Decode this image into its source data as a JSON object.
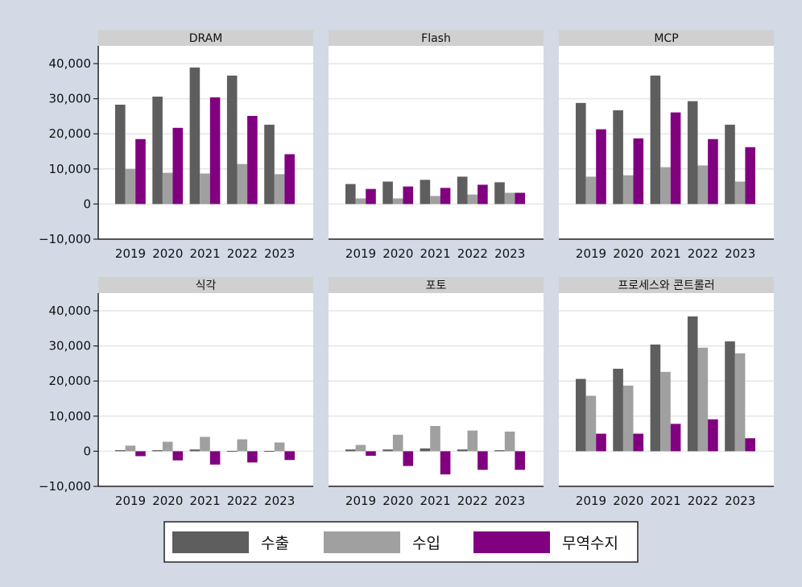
{
  "chart_data": {
    "type": "bar",
    "categories": [
      "2019",
      "2020",
      "2021",
      "2022",
      "2023"
    ],
    "ylim": [
      -10000,
      45000
    ],
    "yticks": [
      -10000,
      0,
      10000,
      20000,
      30000,
      40000
    ],
    "ytick_labels": [
      "−10,000",
      "0",
      "10,000",
      "20,000",
      "30,000",
      "40,000"
    ],
    "grid": true,
    "legend": {
      "placement": "bottom",
      "entries": [
        {
          "name": "수출",
          "color": "#5e5e5e"
        },
        {
          "name": "수입",
          "color": "#a0a0a0"
        },
        {
          "name": "무역수지",
          "color": "#800080"
        }
      ]
    },
    "panels": [
      {
        "title": "DRAM",
        "series": [
          {
            "name": "수출",
            "values": [
              28300,
              30600,
              38900,
              36600,
              22600
            ]
          },
          {
            "name": "수입",
            "values": [
              10000,
              8900,
              8700,
              11400,
              8500
            ]
          },
          {
            "name": "무역수지",
            "values": [
              18500,
              21700,
              30400,
              25100,
              14200
            ]
          }
        ]
      },
      {
        "title": "Flash",
        "series": [
          {
            "name": "수출",
            "values": [
              5700,
              6400,
              6900,
              7800,
              6200
            ]
          },
          {
            "name": "수입",
            "values": [
              1600,
              1600,
              2300,
              2700,
              3200
            ]
          },
          {
            "name": "무역수지",
            "values": [
              4300,
              5000,
              4600,
              5500,
              3200
            ]
          }
        ]
      },
      {
        "title": "MCP",
        "series": [
          {
            "name": "수출",
            "values": [
              28800,
              26700,
              36600,
              29300,
              22600
            ]
          },
          {
            "name": "수입",
            "values": [
              7800,
              8200,
              10500,
              11000,
              6400
            ]
          },
          {
            "name": "무역수지",
            "values": [
              21300,
              18700,
              26100,
              18500,
              16200
            ]
          }
        ]
      },
      {
        "title": "식각",
        "series": [
          {
            "name": "수출",
            "values": [
              300,
              300,
              500,
              100,
              100
            ]
          },
          {
            "name": "수입",
            "values": [
              1600,
              2700,
              4100,
              3400,
              2500
            ]
          },
          {
            "name": "무역수지",
            "values": [
              -1400,
              -2600,
              -3800,
              -3200,
              -2500
            ]
          }
        ]
      },
      {
        "title": "포토",
        "series": [
          {
            "name": "수출",
            "values": [
              500,
              500,
              800,
              500,
              300
            ]
          },
          {
            "name": "수입",
            "values": [
              1800,
              4700,
              7200,
              5900,
              5600
            ]
          },
          {
            "name": "무역수지",
            "values": [
              -1300,
              -4200,
              -6600,
              -5300,
              -5300
            ]
          }
        ]
      },
      {
        "title": "프로세스와 콘트롤러",
        "series": [
          {
            "name": "수출",
            "values": [
              20600,
              23500,
              30400,
              38400,
              31300
            ]
          },
          {
            "name": "수입",
            "values": [
              15800,
              18700,
              22600,
              29500,
              27900
            ]
          },
          {
            "name": "무역수지",
            "values": [
              5000,
              5000,
              7800,
              9100,
              3700
            ]
          }
        ]
      }
    ]
  }
}
